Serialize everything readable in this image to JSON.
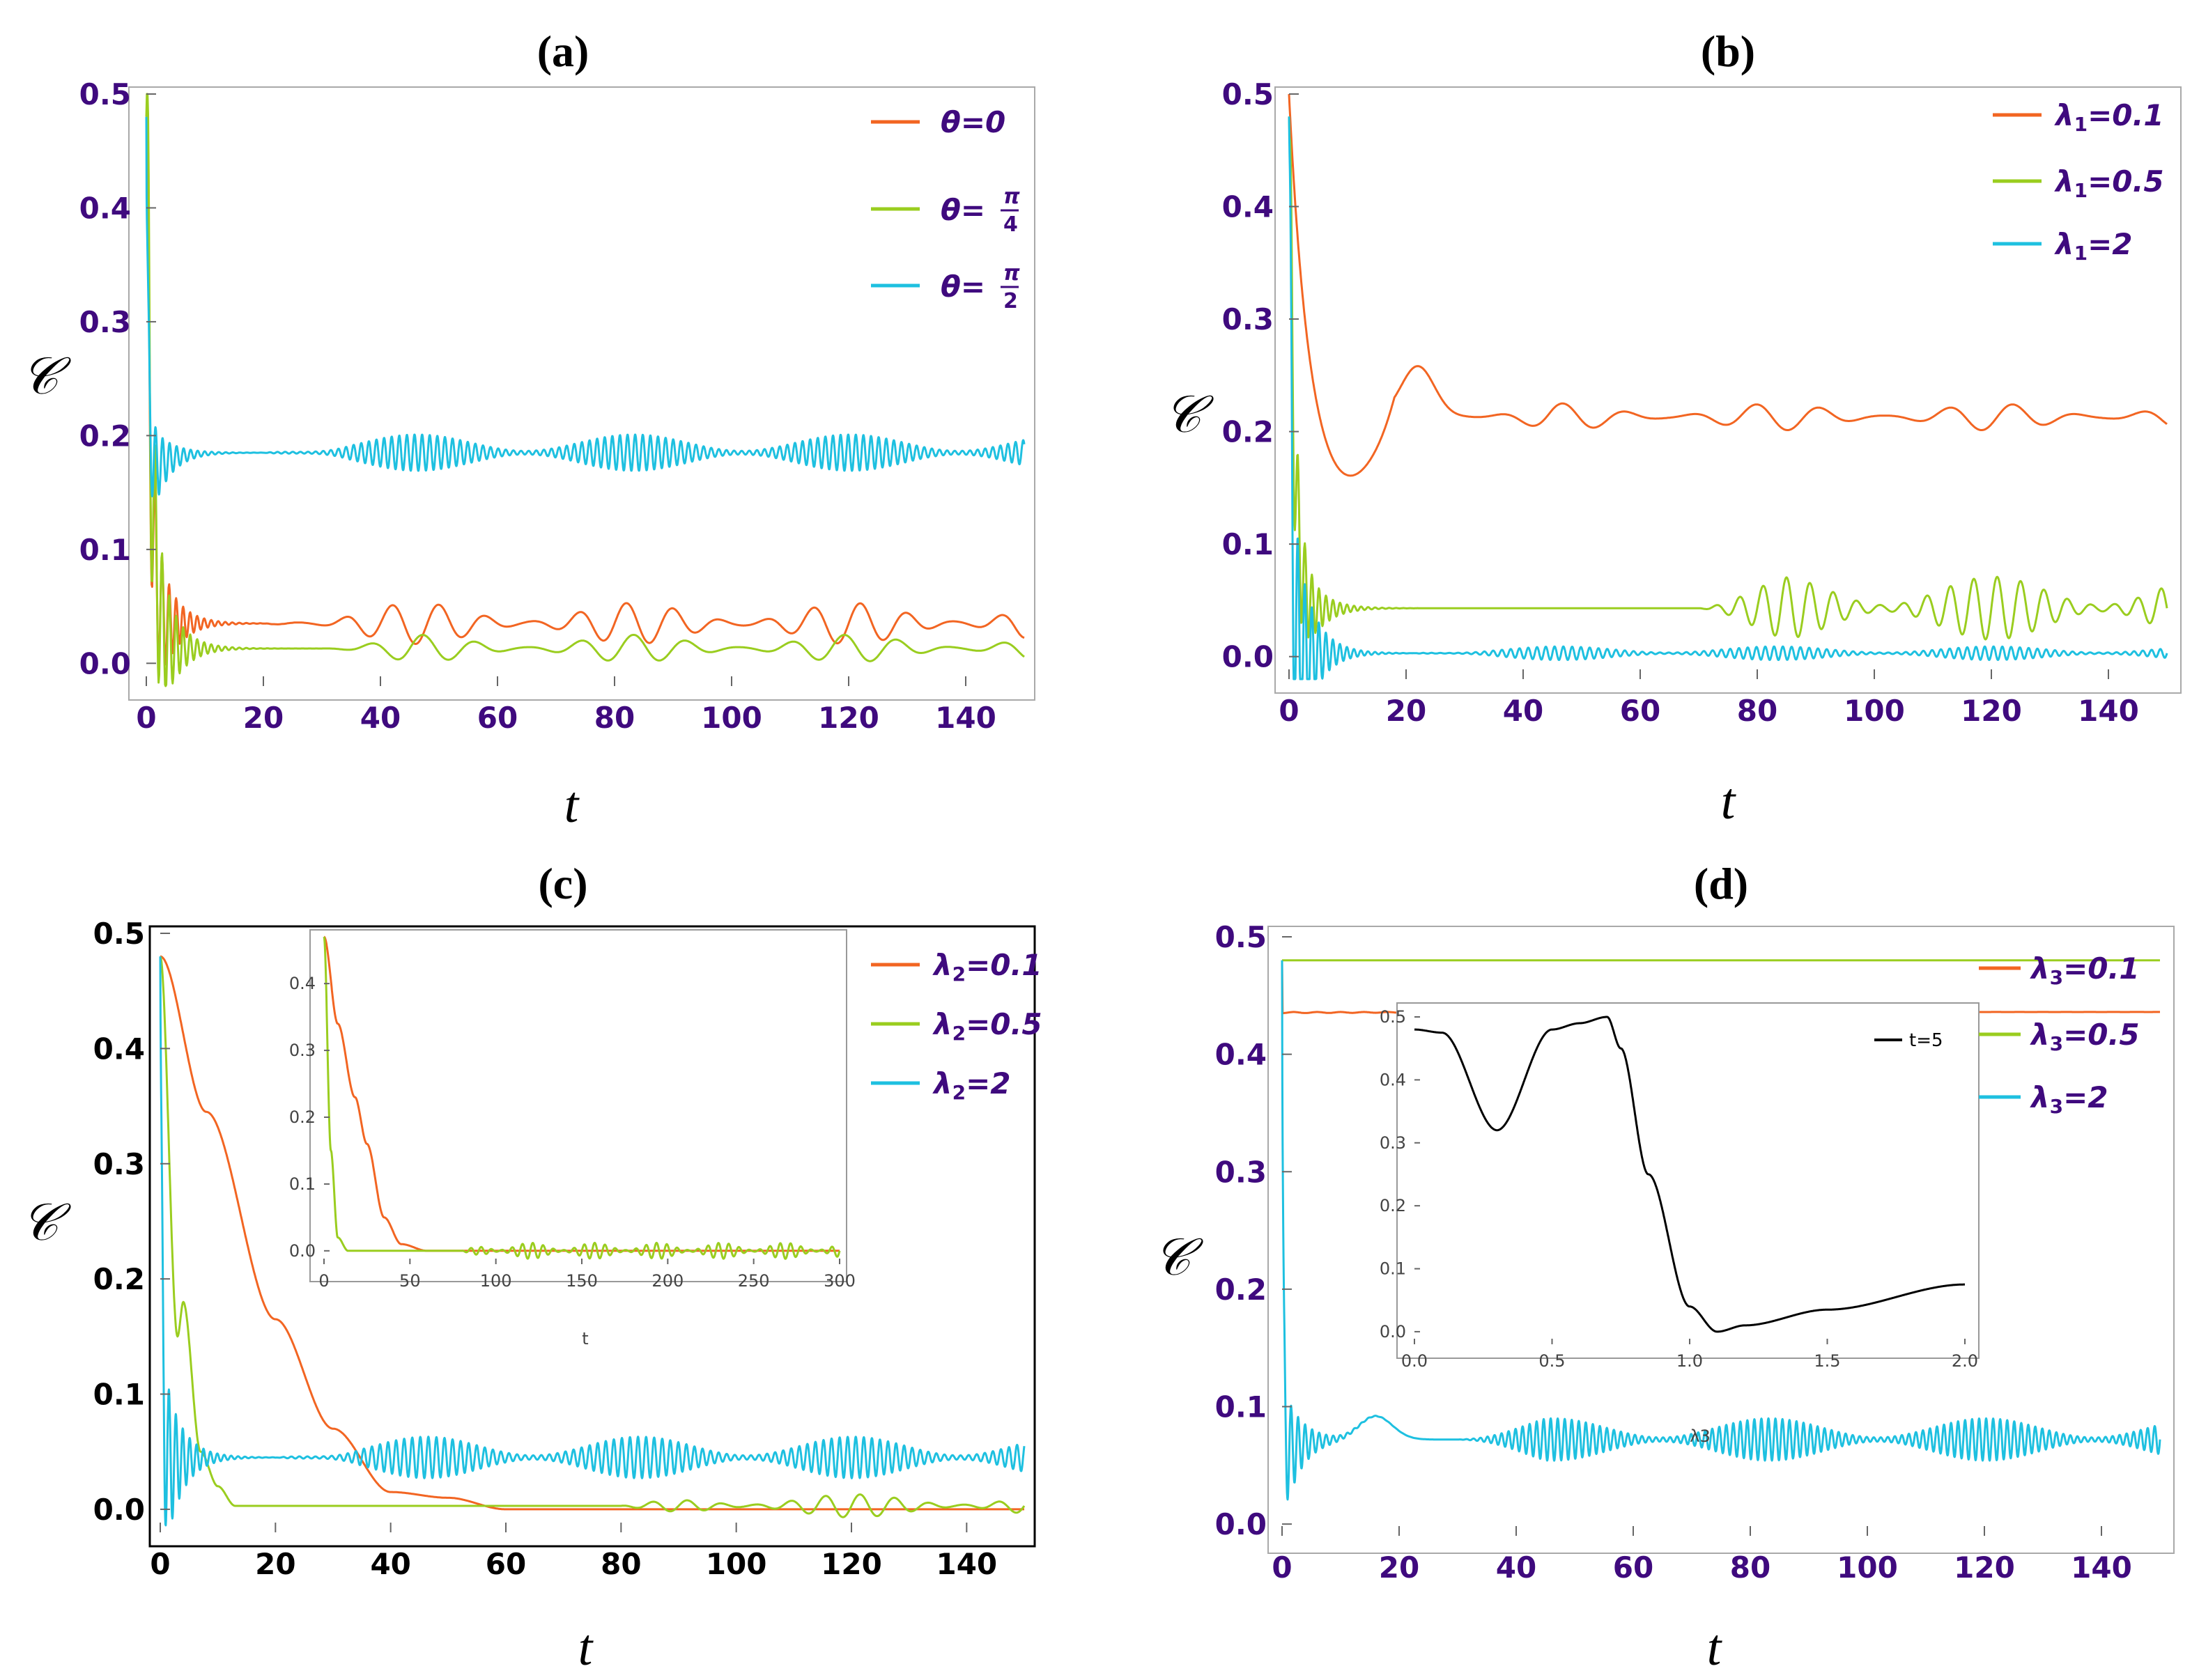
{
  "colors": {
    "orange": "#f26522",
    "green": "#9acd1f",
    "cyan": "#1ec0e0",
    "black": "#000000",
    "purple": "#3f0a7e"
  },
  "ylabel": "𝒞",
  "chart_data": [
    {
      "id": "a",
      "title": "(a)",
      "type": "line",
      "xlabel": "t",
      "ylabel": "𝒞",
      "xlim": [
        0,
        150
      ],
      "ylim": [
        -0.02,
        0.5
      ],
      "xticks": [
        "0",
        "20",
        "40",
        "60",
        "80",
        "100",
        "120",
        "140"
      ],
      "yticks": [
        "0.0",
        "0.1",
        "0.2",
        "0.3",
        "0.4",
        "0.5"
      ],
      "series": [
        {
          "name": "θ=0",
          "legend_prefix": "θ=",
          "legend_value": "0",
          "color": "orange",
          "start": 0.48,
          "decay": 0.7,
          "dip": 0.035,
          "osc": 0.12,
          "plateau": 0.035,
          "mod_amp": 0.018,
          "mod_start": 20,
          "mod_period": 8
        },
        {
          "name": "θ=π/4",
          "legend_prefix": "θ=",
          "legend_num": "π",
          "legend_den": "4",
          "color": "green",
          "start": 0.48,
          "decay": 0.9,
          "dip": 0.01,
          "osc": 0.15,
          "plateau": 0.013,
          "mod_amp": 0.012,
          "mod_start": 30,
          "mod_period": 9
        },
        {
          "name": "θ=π/2",
          "legend_prefix": "θ=",
          "legend_num": "π",
          "legend_den": "2",
          "color": "cyan",
          "start": 0.48,
          "decay": 0.35,
          "dip": 0.14,
          "osc": 0.05,
          "plateau": 0.185,
          "mod_amp": 0.016,
          "mod_start": 20,
          "mod_period": 1.3
        }
      ]
    },
    {
      "id": "b",
      "title": "(b)",
      "type": "line",
      "xlabel": "t",
      "ylabel": "𝒞",
      "xlim": [
        0,
        150
      ],
      "ylim": [
        -0.02,
        0.5
      ],
      "xticks": [
        "0",
        "20",
        "40",
        "60",
        "80",
        "100",
        "120",
        "140"
      ],
      "yticks": [
        "0.0",
        "0.1",
        "0.2",
        "0.3",
        "0.4",
        "0.5"
      ],
      "series": [
        {
          "name": "λ1=0.1",
          "legend_prefix": "λ",
          "legend_sub": "1",
          "legend_value": "=0.1",
          "color": "orange",
          "start": 0.5,
          "decay": 3.0,
          "dip": 0.15,
          "osc": 0.0,
          "plateau": 0.213,
          "bump_at": 22,
          "bump_amp": 0.045,
          "mod_amp": 0.012,
          "mod_start": 30,
          "mod_period": 11
        },
        {
          "name": "λ1=0.5",
          "legend_prefix": "λ",
          "legend_sub": "1",
          "legend_value": "=0.5",
          "color": "green",
          "start": 0.48,
          "decay": 0.9,
          "dip": 0.02,
          "osc": 0.1,
          "plateau": 0.043,
          "mod_amp": 0.028,
          "mod_start": 70,
          "mod_period": 4
        },
        {
          "name": "λ1=2",
          "legend_prefix": "λ",
          "legend_sub": "1",
          "legend_value": "=2",
          "color": "cyan",
          "start": 0.48,
          "decay": 0.4,
          "dip": 0.002,
          "osc": 0.15,
          "plateau": 0.003,
          "mod_amp": 0.006,
          "mod_start": 20,
          "mod_period": 1.5
        }
      ]
    },
    {
      "id": "c",
      "title": "(c)",
      "type": "line",
      "xlabel": "t",
      "ylabel": "𝒞",
      "xlim": [
        0,
        150
      ],
      "ylim": [
        -0.02,
        0.5
      ],
      "xticks": [
        "0",
        "20",
        "40",
        "60",
        "80",
        "100",
        "120",
        "140"
      ],
      "yticks": [
        "0.0",
        "0.1",
        "0.2",
        "0.3",
        "0.4",
        "0.5"
      ],
      "series": [
        {
          "name": "λ2=0.1",
          "legend_prefix": "λ",
          "legend_sub": "2",
          "legend_value": "=0.1",
          "color": "orange",
          "steps": [
            [
              0,
              0.48
            ],
            [
              8,
              0.345
            ],
            [
              20,
              0.165
            ],
            [
              30,
              0.07
            ],
            [
              40,
              0.015
            ],
            [
              50,
              0.01
            ],
            [
              60,
              0.0
            ],
            [
              150,
              0.0
            ]
          ]
        },
        {
          "name": "λ2=0.5",
          "legend_prefix": "λ",
          "legend_sub": "2",
          "legend_value": "=0.5",
          "color": "green",
          "steps": [
            [
              0,
              0.48
            ],
            [
              3,
              0.15
            ],
            [
              4,
              0.18
            ],
            [
              7,
              0.05
            ],
            [
              10,
              0.02
            ],
            [
              13,
              0.003
            ],
            [
              60,
              0.003
            ],
            [
              150,
              0.003
            ]
          ],
          "mod_amp": 0.01,
          "mod_start": 80,
          "mod_period": 6
        },
        {
          "name": "λ2=2",
          "legend_prefix": "λ",
          "legend_sub": "2",
          "legend_value": "=2",
          "color": "cyan",
          "start": 0.48,
          "decay": 0.3,
          "dip": 0.03,
          "osc": 0.1,
          "plateau": 0.045,
          "mod_amp": 0.018,
          "mod_start": 20,
          "mod_period": 1.4
        }
      ],
      "inset": {
        "xlim": [
          0,
          300
        ],
        "ylim": [
          -0.02,
          0.47
        ],
        "xlabel": "t",
        "xticks": [
          "0",
          "50",
          "100",
          "150",
          "200",
          "250",
          "300"
        ],
        "yticks": [
          "0.0",
          "0.1",
          "0.2",
          "0.3",
          "0.4"
        ],
        "series": [
          {
            "name": "λ2=0.1 (t≤300)",
            "color": "orange",
            "steps": [
              [
                0,
                0.47
              ],
              [
                8,
                0.34
              ],
              [
                18,
                0.23
              ],
              [
                25,
                0.16
              ],
              [
                35,
                0.05
              ],
              [
                45,
                0.01
              ],
              [
                60,
                0.0
              ],
              [
                300,
                0.0
              ]
            ]
          },
          {
            "name": "λ2=0.5 (t≤300)",
            "color": "green",
            "steps": [
              [
                0,
                0.47
              ],
              [
                4,
                0.15
              ],
              [
                8,
                0.02
              ],
              [
                14,
                0.0
              ],
              [
                300,
                0.0
              ]
            ],
            "mod_amp": 0.012,
            "mod_start": 80,
            "mod_period": 6
          }
        ]
      }
    },
    {
      "id": "d",
      "title": "(d)",
      "type": "line",
      "xlabel": "t",
      "ylabel": "𝒞",
      "xlim": [
        0,
        150
      ],
      "ylim": [
        -0.01,
        0.5
      ],
      "xticks": [
        "0",
        "20",
        "40",
        "60",
        "80",
        "100",
        "120",
        "140"
      ],
      "yticks": [
        "0.0",
        "0.1",
        "0.2",
        "0.3",
        "0.4",
        "0.5"
      ],
      "series": [
        {
          "name": "λ3=0.1",
          "legend_prefix": "λ",
          "legend_sub": "3",
          "legend_value": "=0.1",
          "color": "orange",
          "start": 0.48,
          "decay": 0.0,
          "dip": 0.435,
          "osc": 0.04,
          "osc_decay": 40,
          "osc_period": 4,
          "plateau": 0.436
        },
        {
          "name": "λ3=0.5",
          "legend_prefix": "λ",
          "legend_sub": "3",
          "legend_value": "=0.5",
          "color": "green",
          "constant": 0.48
        },
        {
          "name": "λ3=2",
          "legend_prefix": "λ",
          "legend_sub": "3",
          "legend_value": "=2",
          "color": "cyan",
          "start": 0.48,
          "decay": 0.2,
          "dip": 0.045,
          "osc": 0.06,
          "plateau": 0.072,
          "bump_at": 16,
          "bump_amp": 0.02,
          "mod_amp": 0.018,
          "mod_start": 30,
          "mod_period": 1.2
        }
      ],
      "inset": {
        "xlim": [
          0,
          2
        ],
        "ylim": [
          -0.02,
          0.5
        ],
        "xlabel": "λ3",
        "legend": "t=5",
        "xticks": [
          "0.0",
          "0.5",
          "1.0",
          "1.5",
          "2.0"
        ],
        "yticks": [
          "0.0",
          "0.1",
          "0.2",
          "0.3",
          "0.4",
          "0.5"
        ],
        "series": [
          {
            "name": "t=5",
            "color": "black",
            "steps": [
              [
                0,
                0.48
              ],
              [
                0.1,
                0.475
              ],
              [
                0.3,
                0.32
              ],
              [
                0.5,
                0.48
              ],
              [
                0.6,
                0.49
              ],
              [
                0.7,
                0.5
              ],
              [
                0.75,
                0.45
              ],
              [
                0.85,
                0.25
              ],
              [
                1.0,
                0.04
              ],
              [
                1.1,
                0.0
              ],
              [
                1.2,
                0.01
              ],
              [
                1.5,
                0.035
              ],
              [
                2.0,
                0.075
              ]
            ]
          }
        ]
      }
    }
  ]
}
